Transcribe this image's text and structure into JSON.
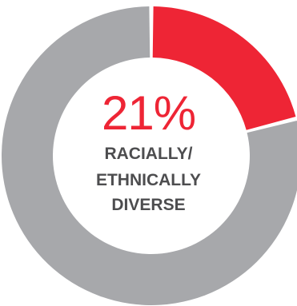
{
  "chart_data": {
    "type": "pie",
    "donut": true,
    "slices": [
      {
        "value": 21,
        "color": "#ee2535"
      },
      {
        "value": 79,
        "color": "#a7a8ab"
      }
    ],
    "center": {
      "value_text": "21%",
      "label_lines": [
        "RACIALLY/",
        "ETHNICALLY",
        "DIVERSE"
      ]
    }
  }
}
